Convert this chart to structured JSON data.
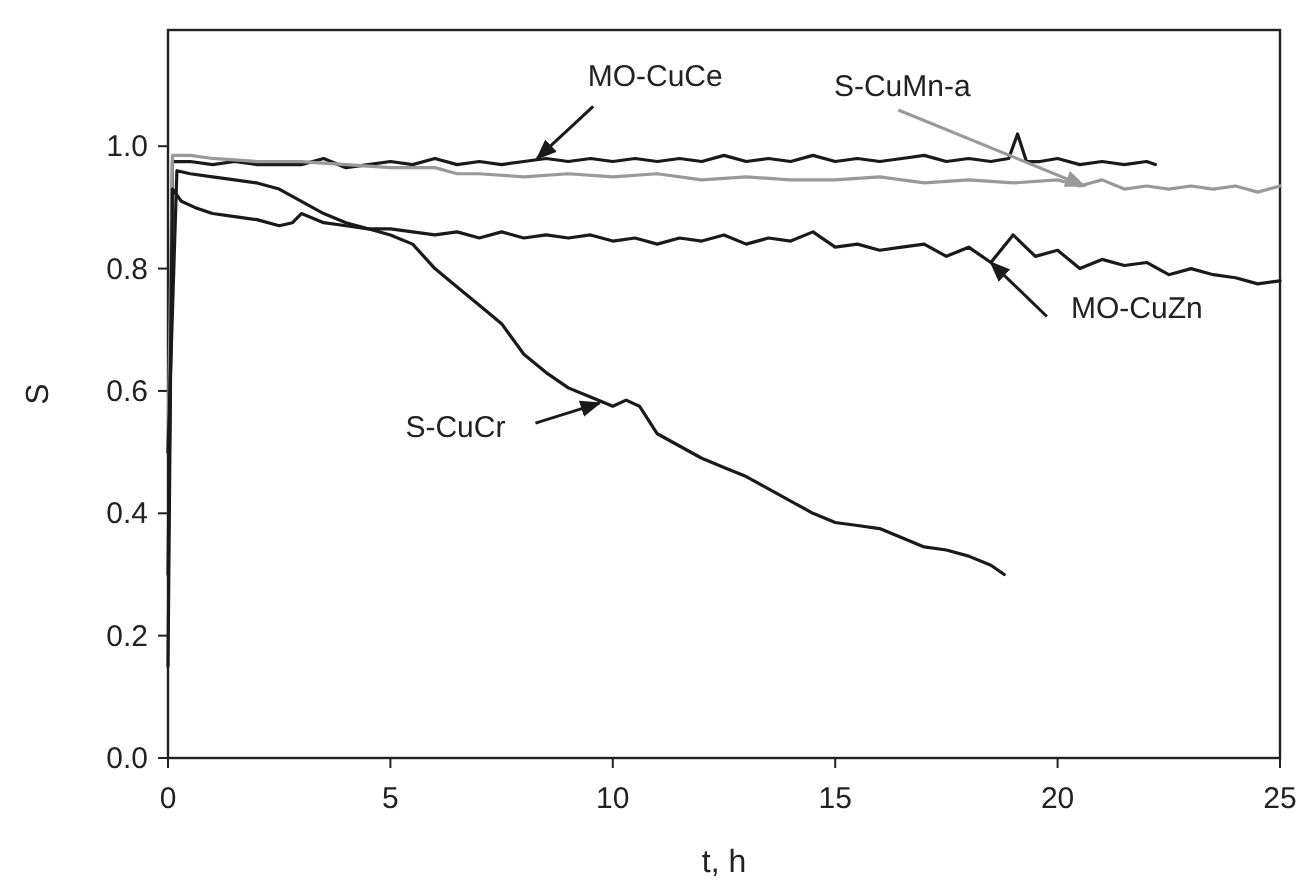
{
  "chart_data": {
    "type": "line",
    "xlabel": "t, h",
    "ylabel": "S",
    "xlim": [
      0,
      25
    ],
    "ylim": [
      0,
      1.19
    ],
    "xticks": [
      0,
      5,
      10,
      15,
      20,
      25
    ],
    "yticks": [
      {
        "value": 0,
        "label": "0.0"
      },
      {
        "value": 0.2,
        "label": "0.2"
      },
      {
        "value": 0.4,
        "label": "0.4"
      },
      {
        "value": 0.6,
        "label": "0.6"
      },
      {
        "value": 0.8,
        "label": "0.8"
      },
      {
        "value": 1,
        "label": "1.0"
      }
    ],
    "grid": false,
    "marker": "none",
    "line_style": "solid",
    "series": [
      {
        "color": "#1a1a1a",
        "x": [
          0,
          0.1,
          0.5,
          1,
          1.5,
          2,
          2.5,
          3,
          3.5,
          4,
          4.5,
          5,
          5.5,
          6,
          6.5,
          7,
          7.5,
          8,
          8.5,
          9,
          9.5,
          10,
          10.5,
          11,
          11.5,
          12,
          12.5,
          13,
          13.5,
          14,
          14.5,
          15,
          15.5,
          16,
          16.5,
          17,
          17.5,
          18,
          18.5,
          18.9,
          19.1,
          19.3,
          19.6,
          20,
          20.5,
          21,
          21.5,
          22,
          22.2
        ],
        "values": [
          0.15,
          0.975,
          0.975,
          0.97,
          0.975,
          0.97,
          0.97,
          0.97,
          0.98,
          0.965,
          0.97,
          0.975,
          0.97,
          0.98,
          0.97,
          0.975,
          0.97,
          0.975,
          0.98,
          0.975,
          0.98,
          0.975,
          0.98,
          0.975,
          0.98,
          0.975,
          0.985,
          0.975,
          0.98,
          0.975,
          0.985,
          0.975,
          0.98,
          0.975,
          0.98,
          0.985,
          0.975,
          0.98,
          0.975,
          0.98,
          1.02,
          0.975,
          0.975,
          0.98,
          0.97,
          0.975,
          0.97,
          0.975,
          0.97
        ]
      },
      {
        "color": "#999999",
        "x": [
          0,
          0.1,
          0.5,
          1,
          2,
          3,
          4,
          5,
          6,
          6.5,
          7,
          8,
          9,
          10,
          11,
          12,
          13,
          14,
          15,
          16,
          17,
          18,
          19,
          20,
          20.5,
          21,
          21.5,
          22,
          22.5,
          23,
          23.5,
          24,
          24.5,
          25
        ],
        "values": [
          0.5,
          0.985,
          0.985,
          0.98,
          0.975,
          0.975,
          0.97,
          0.965,
          0.965,
          0.955,
          0.955,
          0.95,
          0.955,
          0.95,
          0.955,
          0.945,
          0.95,
          0.945,
          0.945,
          0.95,
          0.94,
          0.945,
          0.94,
          0.945,
          0.935,
          0.945,
          0.93,
          0.935,
          0.93,
          0.935,
          0.93,
          0.935,
          0.925,
          0.935
        ]
      },
      {
        "color": "#1a1a1a",
        "x": [
          0,
          0.1,
          0.3,
          0.6,
          1,
          1.5,
          2,
          2.5,
          2.8,
          3,
          3.5,
          4,
          4.5,
          5,
          5.5,
          6,
          6.5,
          7,
          7.5,
          8,
          8.5,
          9,
          9.5,
          10,
          10.5,
          11,
          11.5,
          12,
          12.5,
          13,
          13.5,
          14,
          14.5,
          15,
          15.5,
          16,
          16.5,
          17,
          17.5,
          18,
          18.5,
          19,
          19.5,
          20,
          20.5,
          21,
          21.5,
          22,
          22.5,
          23,
          23.5,
          24,
          24.5,
          25
        ],
        "values": [
          0.3,
          0.93,
          0.91,
          0.9,
          0.89,
          0.885,
          0.88,
          0.87,
          0.875,
          0.89,
          0.875,
          0.87,
          0.865,
          0.865,
          0.86,
          0.855,
          0.86,
          0.85,
          0.86,
          0.85,
          0.855,
          0.85,
          0.855,
          0.845,
          0.85,
          0.84,
          0.85,
          0.845,
          0.855,
          0.84,
          0.85,
          0.845,
          0.86,
          0.835,
          0.84,
          0.83,
          0.835,
          0.84,
          0.82,
          0.835,
          0.81,
          0.855,
          0.82,
          0.83,
          0.8,
          0.815,
          0.805,
          0.81,
          0.79,
          0.8,
          0.79,
          0.785,
          0.775,
          0.78
        ]
      },
      {
        "color": "#1a1a1a",
        "x": [
          0,
          0.2,
          0.5,
          1,
          1.5,
          2,
          2.5,
          3,
          3.5,
          4,
          4.5,
          5,
          5.5,
          6,
          6.5,
          7,
          7.5,
          8,
          8.5,
          9,
          9.5,
          10,
          10.3,
          10.6,
          11,
          11.5,
          12,
          12.5,
          13,
          13.5,
          14,
          14.5,
          15,
          15.5,
          16,
          16.5,
          17,
          17.5,
          18,
          18.5,
          18.8
        ],
        "values": [
          0.5,
          0.96,
          0.955,
          0.95,
          0.945,
          0.94,
          0.93,
          0.91,
          0.89,
          0.875,
          0.865,
          0.855,
          0.84,
          0.8,
          0.77,
          0.74,
          0.71,
          0.66,
          0.63,
          0.605,
          0.59,
          0.575,
          0.585,
          0.575,
          0.53,
          0.51,
          0.49,
          0.475,
          0.46,
          0.44,
          0.42,
          0.4,
          0.385,
          0.38,
          0.375,
          0.36,
          0.345,
          0.34,
          0.33,
          0.315,
          0.3
        ]
      }
    ],
    "annotations": [
      {
        "text": "MO-CuCe",
        "x": 8.3,
        "y": 0.98
      },
      {
        "text": "S-CuMn-a",
        "x": 20.6,
        "y": 0.935
      },
      {
        "text": "MO-CuZn",
        "x": 18.5,
        "y": 0.81
      },
      {
        "text": "S-CuCr",
        "x": 9.7,
        "y": 0.58
      }
    ]
  }
}
